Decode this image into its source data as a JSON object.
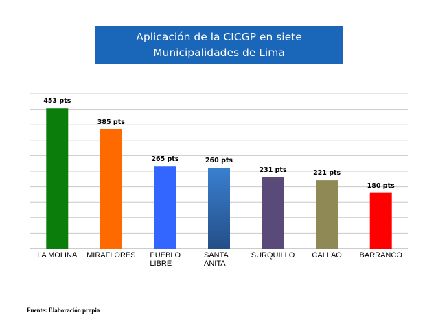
{
  "title_lines": [
    "Aplicación de la CICGP en siete",
    "Municipalidades de Lima"
  ],
  "source": "Fuente: Elaboración propia",
  "chart_data": {
    "type": "bar",
    "title": "Aplicación de la CICGP en siete Municipalidades de Lima",
    "categories": [
      "LA MOLINA",
      "MIRAFLORES",
      "PUEBLO LIBRE",
      "SANTA ANITA",
      "SURQUILLO",
      "CALLAO",
      "BARRANCO"
    ],
    "category_lines": [
      [
        "LA MOLINA"
      ],
      [
        "MIRAFLORES"
      ],
      [
        "PUEBLO",
        "LIBRE"
      ],
      [
        "SANTA",
        "ANITA"
      ],
      [
        "SURQUILLO"
      ],
      [
        "CALLAO"
      ],
      [
        "BARRANCO"
      ]
    ],
    "values": [
      453,
      385,
      265,
      260,
      231,
      221,
      180
    ],
    "value_labels": [
      "453 pts",
      "385 pts",
      "265 pts",
      "260 pts",
      "231 pts",
      "221 pts",
      "180 pts"
    ],
    "colors": [
      "#0a7d0a",
      "#ff6a00",
      "#3366ff",
      "#2f6db8",
      "#5a4a7a",
      "#8f8a55",
      "#ff0000"
    ],
    "ylim": [
      0,
      500
    ],
    "grid": true,
    "xlabel": "",
    "ylabel": ""
  }
}
